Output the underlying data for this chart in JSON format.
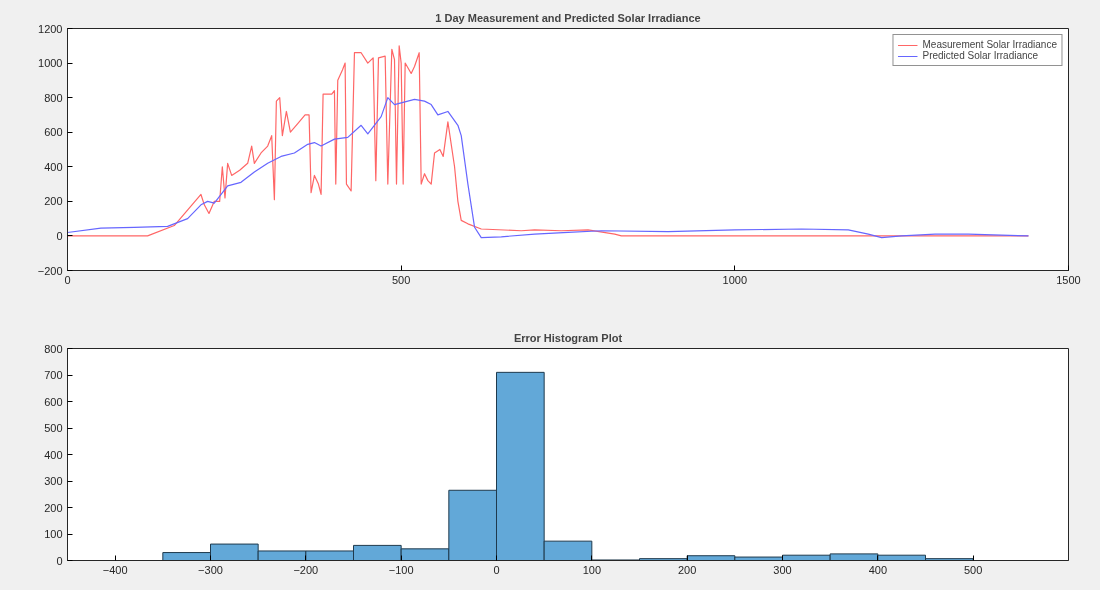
{
  "chart_data": [
    {
      "type": "line",
      "title": "1 Day Measurement and Predicted Solar Irradiance",
      "xlim": [
        0,
        1500
      ],
      "xticks": [
        0,
        500,
        1000,
        1500
      ],
      "ylim": [
        -200,
        1200
      ],
      "yticks": [
        -200,
        0,
        200,
        400,
        600,
        800,
        1000,
        1200
      ],
      "grid": false,
      "legend": "top right",
      "marker": "none",
      "line_style": "solid",
      "series": [
        {
          "name": "Measurement Solar Irradiance",
          "color": "#ff6666",
          "x": [
            0,
            120,
            160,
            200,
            205,
            212,
            220,
            228,
            232,
            236,
            240,
            246,
            258,
            270,
            276,
            280,
            290,
            300,
            306,
            310,
            313,
            318,
            322,
            328,
            334,
            345,
            356,
            362,
            365,
            370,
            376,
            380,
            383,
            396,
            400,
            402,
            405,
            412,
            416,
            418,
            425,
            430,
            440,
            450,
            458,
            462,
            466,
            476,
            480,
            486,
            490,
            493,
            497,
            500,
            503,
            506,
            515,
            520,
            527,
            530,
            535,
            540,
            545,
            550,
            558,
            563,
            570,
            580,
            585,
            590,
            600,
            620,
            680,
            700,
            740,
            780,
            820,
            830,
            1440
          ],
          "values": [
            0,
            0,
            60,
            240,
            180,
            130,
            200,
            200,
            400,
            220,
            420,
            350,
            380,
            420,
            520,
            420,
            480,
            520,
            580,
            210,
            780,
            800,
            580,
            720,
            600,
            650,
            700,
            700,
            250,
            350,
            300,
            240,
            820,
            820,
            840,
            300,
            900,
            960,
            1000,
            300,
            260,
            1060,
            1060,
            1000,
            1030,
            320,
            1030,
            1040,
            300,
            1080,
            1020,
            300,
            1100,
            1000,
            300,
            1000,
            940,
            980,
            1060,
            300,
            360,
            320,
            300,
            480,
            500,
            460,
            660,
            400,
            200,
            90,
            70,
            40,
            30,
            35,
            30,
            35,
            10,
            0,
            0
          ]
        },
        {
          "name": "Predicted Solar Irradiance",
          "color": "#6666ff",
          "x": [
            0,
            50,
            100,
            150,
            180,
            200,
            210,
            220,
            240,
            260,
            280,
            300,
            320,
            340,
            360,
            370,
            380,
            400,
            420,
            440,
            450,
            470,
            480,
            490,
            500,
            520,
            535,
            545,
            555,
            570,
            585,
            590,
            600,
            610,
            620,
            650,
            700,
            750,
            800,
            900,
            1000,
            1100,
            1170,
            1200,
            1220,
            1250,
            1300,
            1350,
            1440
          ],
          "values": [
            20,
            45,
            50,
            55,
            100,
            180,
            200,
            190,
            290,
            310,
            370,
            420,
            460,
            480,
            530,
            540,
            520,
            560,
            570,
            640,
            590,
            690,
            800,
            760,
            770,
            790,
            780,
            760,
            700,
            720,
            640,
            580,
            300,
            50,
            -10,
            -5,
            10,
            20,
            30,
            25,
            35,
            40,
            35,
            10,
            -10,
            0,
            10,
            10,
            0
          ]
        }
      ]
    },
    {
      "type": "histogram",
      "title": "Error Histogram Plot",
      "xlim": [
        -450,
        600
      ],
      "xticks": [
        -400,
        -300,
        -200,
        -100,
        0,
        100,
        200,
        300,
        400,
        500
      ],
      "ylim": [
        0,
        800
      ],
      "yticks": [
        0,
        100,
        200,
        300,
        400,
        500,
        600,
        700,
        800
      ],
      "grid": false,
      "color": "#62a8d8",
      "bins": [
        -350,
        -300,
        -250,
        -200,
        -150,
        -100,
        -50,
        0,
        50,
        100,
        150,
        200,
        250,
        300,
        350,
        400,
        450,
        500
      ],
      "values": [
        30,
        62,
        36,
        36,
        57,
        44,
        265,
        710,
        73,
        2,
        7,
        18,
        13,
        20,
        25,
        20,
        7
      ]
    }
  ]
}
